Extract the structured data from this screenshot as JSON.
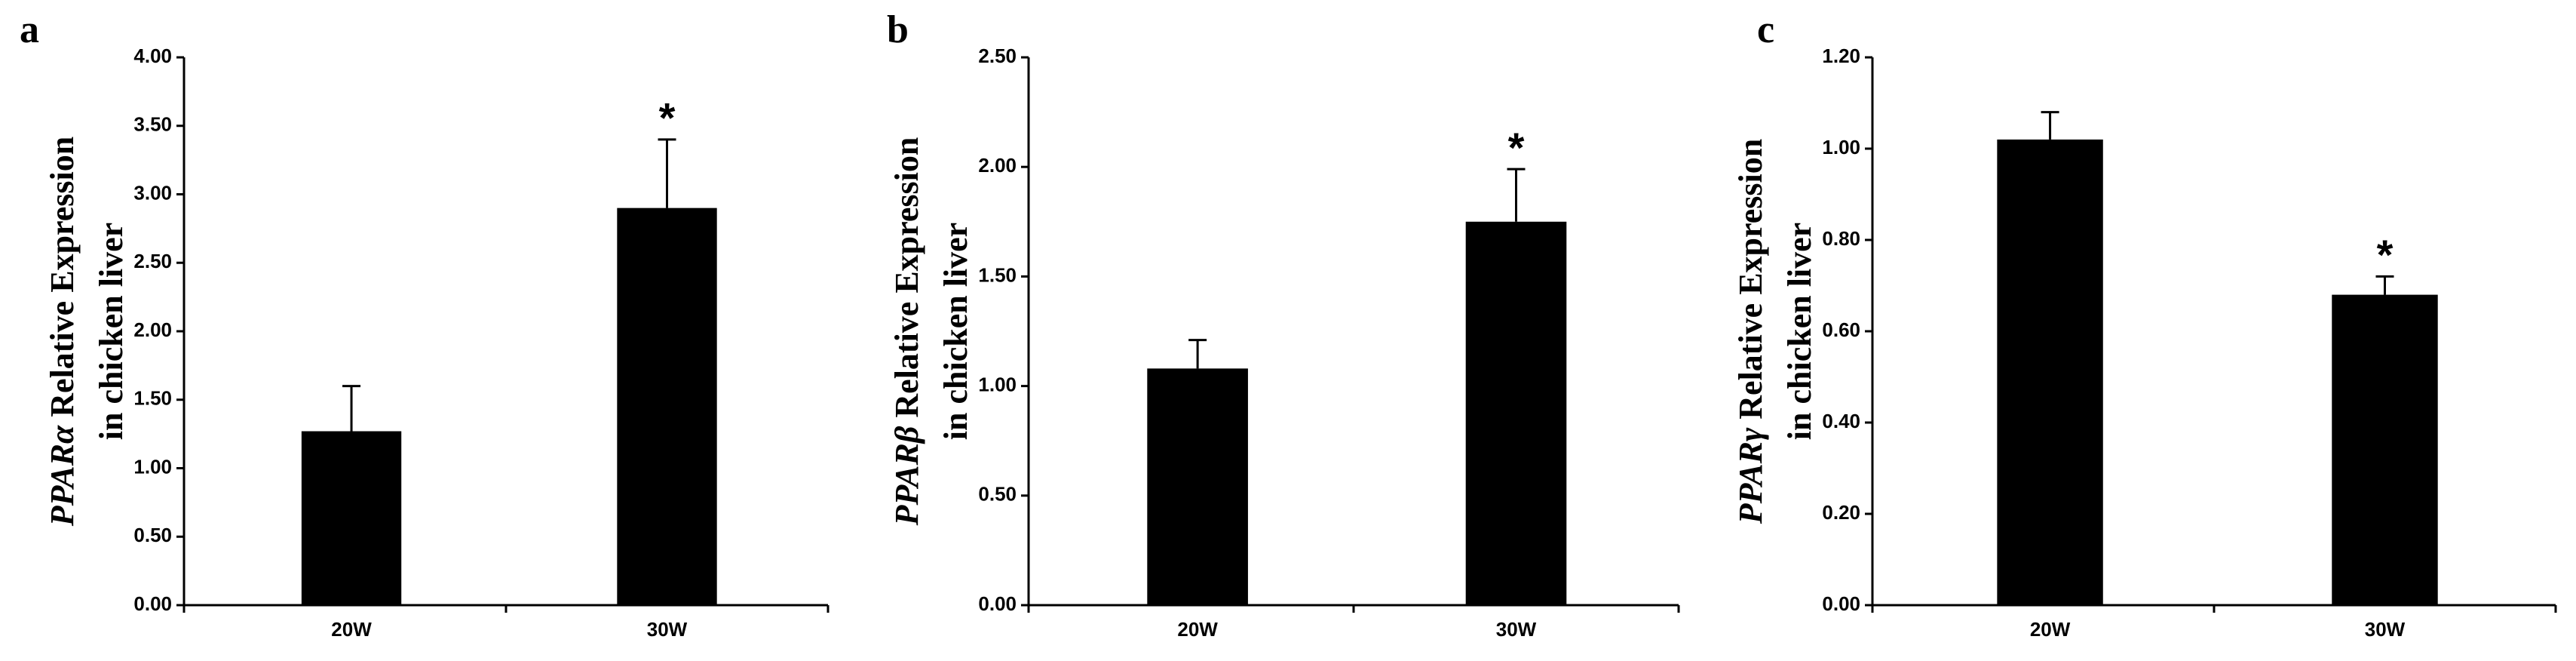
{
  "chart_data": [
    {
      "type": "bar",
      "panel": "a",
      "ylabel_gene": "PPARα",
      "ylabel_rest": " Relative Expression",
      "ylabel_line2": "in chicken liver",
      "categories": [
        "20W",
        "30W"
      ],
      "values": [
        1.27,
        2.9
      ],
      "errors": [
        0.33,
        0.5
      ],
      "color": "#000000",
      "annotations": [
        {
          "category": "30W",
          "text": "*"
        }
      ],
      "ylim": [
        0,
        4
      ],
      "yticks": [
        {
          "value": 0,
          "label": "0.00"
        },
        {
          "value": 0.5,
          "label": "0.50"
        },
        {
          "value": 1,
          "label": "1.00"
        },
        {
          "value": 1.5,
          "label": "1.50"
        },
        {
          "value": 2,
          "label": "2.00"
        },
        {
          "value": 2.5,
          "label": "2.50"
        },
        {
          "value": 3,
          "label": "3.00"
        },
        {
          "value": 3.5,
          "label": "3.50"
        },
        {
          "value": 4,
          "label": "4.00"
        }
      ]
    },
    {
      "type": "bar",
      "panel": "b",
      "ylabel_gene": "PPARβ",
      "ylabel_rest": " Relative Expression",
      "ylabel_line2": "in chicken liver",
      "categories": [
        "20W",
        "30W"
      ],
      "values": [
        1.08,
        1.75
      ],
      "errors": [
        0.13,
        0.24
      ],
      "color": "#000000",
      "annotations": [
        {
          "category": "30W",
          "text": "*"
        }
      ],
      "ylim": [
        0,
        2.5
      ],
      "yticks": [
        {
          "value": 0,
          "label": "0.00"
        },
        {
          "value": 0.5,
          "label": "0.50"
        },
        {
          "value": 1,
          "label": "1.00"
        },
        {
          "value": 1.5,
          "label": "1.50"
        },
        {
          "value": 2,
          "label": "2.00"
        },
        {
          "value": 2.5,
          "label": "2.50"
        }
      ]
    },
    {
      "type": "bar",
      "panel": "c",
      "ylabel_gene": "PPARγ",
      "ylabel_rest": " Relative Expression",
      "ylabel_line2": "in chicken liver",
      "categories": [
        "20W",
        "30W"
      ],
      "values": [
        1.02,
        0.68
      ],
      "errors": [
        0.06,
        0.04
      ],
      "color": "#000000",
      "annotations": [
        {
          "category": "30W",
          "text": "*"
        }
      ],
      "ylim": [
        0,
        1.2
      ],
      "yticks": [
        {
          "value": 0,
          "label": "0.00"
        },
        {
          "value": 0.2,
          "label": "0.20"
        },
        {
          "value": 0.4,
          "label": "0.40"
        },
        {
          "value": 0.6,
          "label": "0.60"
        },
        {
          "value": 0.8,
          "label": "0.80"
        },
        {
          "value": 1,
          "label": "1.00"
        },
        {
          "value": 1.2,
          "label": "1.20"
        }
      ]
    }
  ]
}
